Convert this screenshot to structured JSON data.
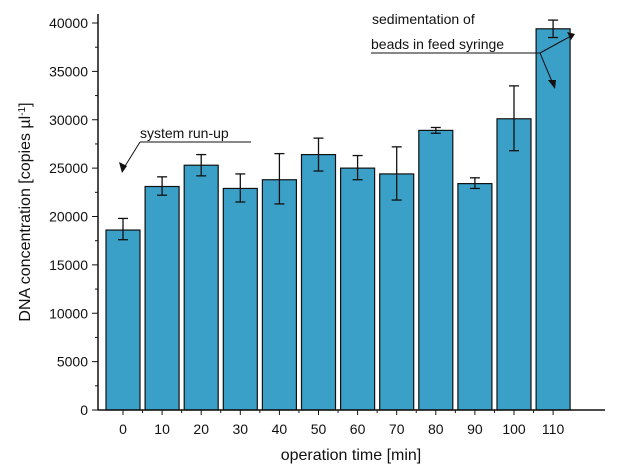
{
  "chart_data": {
    "type": "bar",
    "xlabel": "operation time [min]",
    "ylabel_main": "DNA concentration [copies µl",
    "ylabel_sup": "-1",
    "ylabel_end": "]",
    "ylim": [
      0,
      40000
    ],
    "yticks": [
      0,
      5000,
      10000,
      15000,
      20000,
      25000,
      30000,
      35000,
      40000
    ],
    "categories": [
      "0",
      "10",
      "20",
      "30",
      "40",
      "50",
      "60",
      "70",
      "80",
      "90",
      "100",
      "110"
    ],
    "values": [
      18600,
      23100,
      25300,
      22900,
      23800,
      26400,
      25000,
      24400,
      28900,
      23400,
      30100,
      39400
    ],
    "err_low": [
      17600,
      22200,
      24200,
      21500,
      21300,
      24700,
      23800,
      21700,
      28600,
      22900,
      26800,
      38500
    ],
    "err_high": [
      19800,
      24100,
      26400,
      24400,
      26500,
      28100,
      26300,
      27200,
      29200,
      24000,
      33500,
      40300
    ],
    "bar_color": "#3aa0c8",
    "grid": false,
    "annotations": [
      {
        "text": "system run-up",
        "underlined": true,
        "points_to_category": "0"
      },
      {
        "text_line1": "sedimentation of",
        "text_line2": "beads in feed syringe",
        "underlined": true,
        "points_to_categories": [
          "100",
          "110"
        ]
      }
    ]
  }
}
